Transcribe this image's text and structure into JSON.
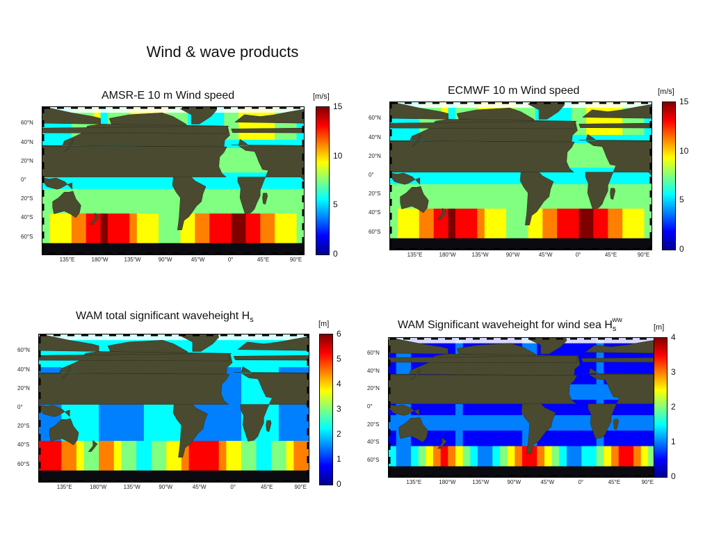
{
  "slide_title": "Wind & wave products",
  "colors": {
    "colorbar": [
      "#00008f",
      "#0000ff",
      "#0080ff",
      "#00ffff",
      "#80ff80",
      "#ffff00",
      "#ff8000",
      "#ff0000",
      "#800000"
    ],
    "land": "#4a4a30",
    "ice": "#ffffff",
    "polar_night": "#0a0a10"
  },
  "panels": [
    {
      "title": "AMSR-E 10 m Wind speed",
      "unit": "[m/s]",
      "colorbar_ticks": [
        "0",
        "5",
        "10",
        "15"
      ],
      "lat_labels": [
        "60°N",
        "40°N",
        "20°N",
        "0°",
        "20°S",
        "40°S",
        "60°S"
      ],
      "lon_labels": [
        "135°E",
        "180°W",
        "135°W",
        "90°W",
        "45°W",
        "0°",
        "45°E",
        "90°E"
      ]
    },
    {
      "title": "ECMWF 10 m Wind speed",
      "unit": "[m/s]",
      "colorbar_ticks": [
        "0",
        "5",
        "10",
        "15"
      ],
      "lat_labels": [
        "60°N",
        "40°N",
        "20°N",
        "0°",
        "20°S",
        "40°S",
        "60°S"
      ],
      "lon_labels": [
        "135°E",
        "180°W",
        "135°W",
        "90°W",
        "45°W",
        "0°",
        "45°E",
        "90°E"
      ]
    },
    {
      "title": "WAM total significant waveheight H",
      "title_sub": "s",
      "unit": "[m]",
      "colorbar_ticks": [
        "0",
        "1",
        "2",
        "3",
        "4",
        "5",
        "6"
      ],
      "lat_labels": [
        "60°N",
        "40°N",
        "20°N",
        "0°",
        "20°S",
        "40°S",
        "60°S"
      ],
      "lon_labels": [
        "135°E",
        "180°W",
        "135°W",
        "90°W",
        "45°W",
        "0°",
        "45°E",
        "90°E"
      ]
    },
    {
      "title": "WAM Significant waveheight for wind sea H",
      "title_sub": "s",
      "title_sup": "ww",
      "unit": "[m]",
      "colorbar_ticks": [
        "0",
        "1",
        "2",
        "3",
        "4"
      ],
      "lat_labels": [
        "60°N",
        "40°N",
        "20°N",
        "0°",
        "20°S",
        "40°S",
        "60°S"
      ],
      "lon_labels": [
        "135°E",
        "180°W",
        "135°W",
        "90°W",
        "45°W",
        "0°",
        "45°E",
        "90°E"
      ]
    }
  ]
}
